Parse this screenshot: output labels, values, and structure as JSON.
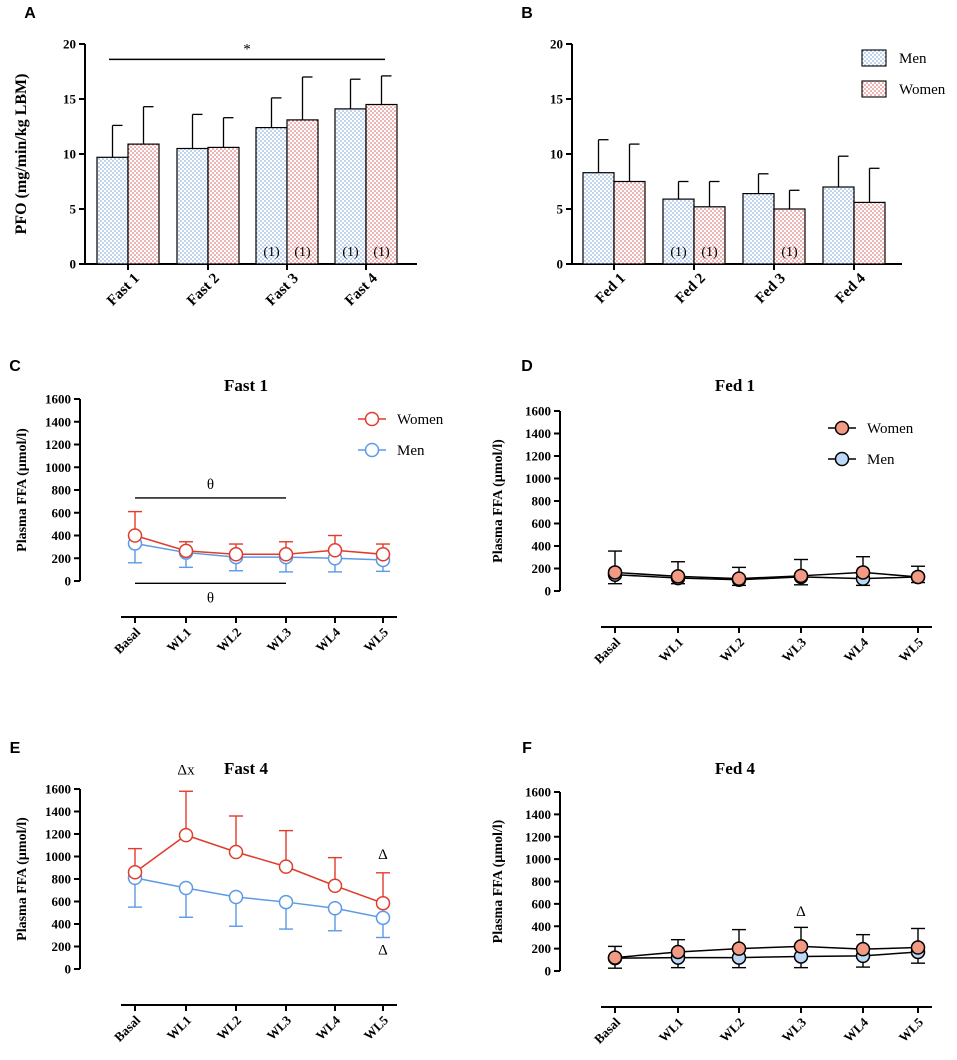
{
  "colors": {
    "men_pattern": "#6a9bd8",
    "women_pattern": "#d95b5b",
    "women_line": "#e03c2c",
    "men_line": "#5b9ae6",
    "women_fill": "#f29a84",
    "men_fill": "#bcd9f7"
  },
  "chart_data": [
    {
      "panel": "A",
      "type": "bar",
      "ylabel": "PFO (mg/min/kg LBM)",
      "ylim": [
        0,
        20
      ],
      "yticks": [
        0,
        5,
        10,
        15,
        20
      ],
      "categories": [
        "Fast 1",
        "Fast 2",
        "Fast 3",
        "Fast 4"
      ],
      "series": [
        {
          "name": "Men",
          "values": [
            9.7,
            10.5,
            12.4,
            14.1
          ],
          "errors": [
            2.9,
            3.1,
            2.7,
            2.7
          ]
        },
        {
          "name": "Women",
          "values": [
            10.9,
            10.6,
            13.1,
            14.5
          ],
          "errors": [
            3.4,
            2.7,
            3.9,
            2.6
          ]
        }
      ],
      "bar_labels": [
        {
          "category": 2,
          "series": 0,
          "text": "(1)"
        },
        {
          "category": 2,
          "series": 1,
          "text": "(1)"
        },
        {
          "category": 3,
          "series": 0,
          "text": "(1)"
        },
        {
          "category": 3,
          "series": 1,
          "text": "(1)"
        }
      ],
      "annotations": [
        {
          "text": "*",
          "from": 0,
          "to": 3,
          "level": 18.6
        }
      ]
    },
    {
      "panel": "B",
      "type": "bar",
      "ylabel": "",
      "ylim": [
        0,
        20
      ],
      "yticks": [
        0,
        5,
        10,
        15,
        20
      ],
      "categories": [
        "Fed 1",
        "Fed 2",
        "Fed 3",
        "Fed 4"
      ],
      "legend": [
        "Men",
        "Women"
      ],
      "series": [
        {
          "name": "Men",
          "values": [
            8.3,
            5.9,
            6.4,
            7.0
          ],
          "errors": [
            3.0,
            1.6,
            1.8,
            2.8
          ]
        },
        {
          "name": "Women",
          "values": [
            7.5,
            5.2,
            5.0,
            5.6
          ],
          "errors": [
            3.4,
            2.3,
            1.7,
            3.1
          ]
        }
      ],
      "bar_labels": [
        {
          "category": 1,
          "series": 0,
          "text": "(1)"
        },
        {
          "category": 1,
          "series": 1,
          "text": "(1)"
        },
        {
          "category": 2,
          "series": 1,
          "text": "(1)"
        }
      ],
      "annotations": []
    },
    {
      "panel": "C",
      "type": "line",
      "title": "Fast 1",
      "ylabel": "Plasma FFA (µmol/l)",
      "ylim": [
        0,
        1600
      ],
      "yticks": [
        0,
        200,
        400,
        600,
        800,
        1000,
        1200,
        1400,
        1600
      ],
      "categories": [
        "Basal",
        "WL1",
        "WL2",
        "WL3",
        "WL4",
        "WL5"
      ],
      "marker_style": "open",
      "legend": [
        "Women",
        "Men"
      ],
      "series": [
        {
          "name": "Women",
          "values": [
            400,
            265,
            235,
            235,
            270,
            235
          ],
          "errors": [
            210,
            80,
            90,
            110,
            130,
            90
          ],
          "err_dir": "up"
        },
        {
          "name": "Men",
          "values": [
            330,
            250,
            210,
            210,
            200,
            185
          ],
          "errors": [
            170,
            130,
            120,
            130,
            120,
            100
          ],
          "err_dir": "down"
        }
      ],
      "brackets": [
        {
          "text": "θ",
          "from": 0,
          "to": 3,
          "value": 730,
          "label_pos": "above"
        },
        {
          "text": "θ",
          "from": 0,
          "to": 3,
          "value": -20,
          "label_pos": "below"
        }
      ],
      "point_labels": []
    },
    {
      "panel": "D",
      "type": "line",
      "title": "Fed 1",
      "ylabel": "Plasma FFA (µmol/l)",
      "ylim": [
        0,
        1600
      ],
      "yticks": [
        0,
        200,
        400,
        600,
        800,
        1000,
        1200,
        1400,
        1600
      ],
      "categories": [
        "Basal",
        "WL1",
        "WL2",
        "WL3",
        "WL4",
        "WL5"
      ],
      "marker_style": "filled",
      "legend": [
        "Women",
        "Men"
      ],
      "series": [
        {
          "name": "Women",
          "values": [
            165,
            130,
            110,
            135,
            165,
            125
          ],
          "errors": [
            190,
            130,
            100,
            145,
            140,
            95
          ],
          "err_dir": "up"
        },
        {
          "name": "Men",
          "values": [
            145,
            115,
            100,
            125,
            110,
            125
          ],
          "errors": [
            80,
            50,
            50,
            70,
            60,
            50
          ],
          "err_dir": "down"
        }
      ],
      "brackets": [],
      "point_labels": []
    },
    {
      "panel": "E",
      "type": "line",
      "title": "Fast 4",
      "ylabel": "Plasma FFA (µmol/l)",
      "ylim": [
        0,
        1600
      ],
      "yticks": [
        0,
        200,
        400,
        600,
        800,
        1000,
        1200,
        1400,
        1600
      ],
      "categories": [
        "Basal",
        "WL1",
        "WL2",
        "WL3",
        "WL4",
        "WL5"
      ],
      "marker_style": "open",
      "legend": [],
      "series": [
        {
          "name": "Women",
          "values": [
            860,
            1190,
            1040,
            910,
            740,
            585
          ],
          "errors": [
            210,
            390,
            320,
            320,
            250,
            270
          ],
          "err_dir": "up"
        },
        {
          "name": "Men",
          "values": [
            810,
            720,
            640,
            595,
            540,
            455
          ],
          "errors": [
            260,
            260,
            260,
            240,
            200,
            175
          ],
          "err_dir": "down"
        }
      ],
      "brackets": [],
      "point_labels": [
        {
          "text": "Δx",
          "category": 1,
          "value": 1730
        },
        {
          "text": "Δ",
          "category": 5,
          "value": 980
        },
        {
          "text": "Δ",
          "category": 5,
          "value": 130
        }
      ]
    },
    {
      "panel": "F",
      "type": "line",
      "title": "Fed 4",
      "ylabel": "Plasma FFA (µmol/l)",
      "ylim": [
        0,
        1600
      ],
      "yticks": [
        0,
        200,
        400,
        600,
        800,
        1000,
        1200,
        1400,
        1600
      ],
      "categories": [
        "Basal",
        "WL1",
        "WL2",
        "WL3",
        "WL4",
        "WL5"
      ],
      "marker_style": "filled",
      "legend": [],
      "series": [
        {
          "name": "Women",
          "values": [
            120,
            170,
            200,
            220,
            195,
            210
          ],
          "errors": [
            100,
            110,
            170,
            170,
            130,
            170
          ],
          "err_dir": "up"
        },
        {
          "name": "Men",
          "values": [
            115,
            120,
            120,
            130,
            135,
            170
          ],
          "errors": [
            90,
            90,
            90,
            100,
            100,
            100
          ],
          "err_dir": "down"
        }
      ],
      "brackets": [],
      "point_labels": [
        {
          "text": "Δ",
          "category": 3,
          "value": 490
        }
      ]
    }
  ]
}
